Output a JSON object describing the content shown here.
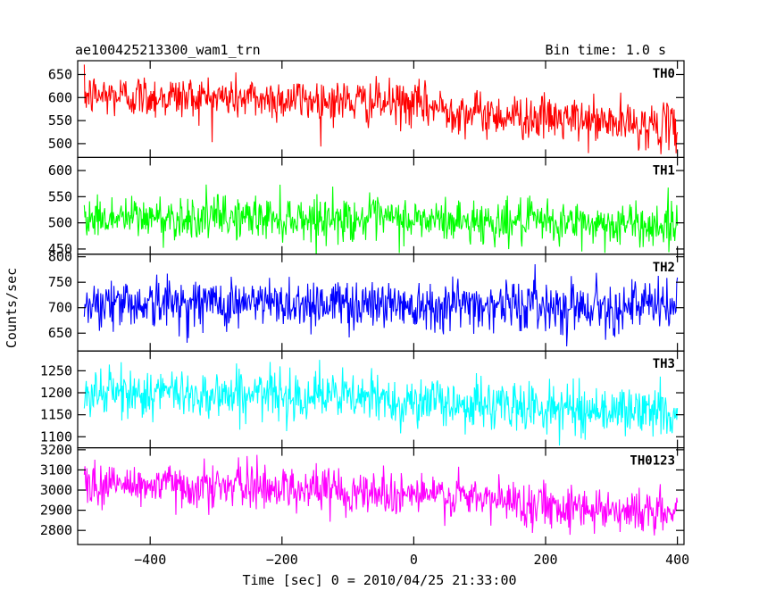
{
  "chart_data": {
    "type": "line",
    "title": "ae100425213300_wam1_trn",
    "subtitle": "Bin time: 1.0 s",
    "xlabel": "Time [sec] 0 = 2010/04/25 21:33:00",
    "ylabel": "Counts/sec",
    "xlim": [
      -510,
      410
    ],
    "x_ticks": [
      -400,
      -200,
      0,
      200,
      400
    ],
    "x_tick_labels": [
      "−400",
      "−200",
      "0",
      "200",
      "400"
    ],
    "x_range": [
      -500,
      400
    ],
    "bin_time_s": 1.0,
    "grid": false,
    "legend": "none",
    "panels": [
      {
        "name": "TH0",
        "color": "#ff0000",
        "ylim": [
          470,
          680
        ],
        "y_ticks": [
          500,
          550,
          600,
          650
        ],
        "trend": [
          [
            -500,
            605
          ],
          [
            -300,
            600
          ],
          [
            -150,
            595
          ],
          [
            0,
            585
          ],
          [
            100,
            565
          ],
          [
            250,
            550
          ],
          [
            400,
            535
          ]
        ],
        "noise_sd": 24
      },
      {
        "name": "TH1",
        "color": "#00ff00",
        "ylim": [
          440,
          625
        ],
        "y_ticks": [
          450,
          500,
          550,
          600
        ],
        "trend": [
          [
            -500,
            510
          ],
          [
            -200,
            510
          ],
          [
            0,
            505
          ],
          [
            200,
            500
          ],
          [
            400,
            495
          ]
        ],
        "noise_sd": 21
      },
      {
        "name": "TH2",
        "color": "#0000ff",
        "ylim": [
          615,
          805
        ],
        "y_ticks": [
          650,
          700,
          750,
          800
        ],
        "trend": [
          [
            -500,
            710
          ],
          [
            0,
            708
          ],
          [
            400,
            702
          ]
        ],
        "noise_sd": 25
      },
      {
        "name": "TH3",
        "color": "#00ffff",
        "ylim": [
          1075,
          1295
        ],
        "y_ticks": [
          1100,
          1150,
          1200,
          1250
        ],
        "trend": [
          [
            -500,
            1200
          ],
          [
            -150,
            1195
          ],
          [
            0,
            1180
          ],
          [
            200,
            1165
          ],
          [
            400,
            1155
          ]
        ],
        "noise_sd": 28
      },
      {
        "name": "TH0123",
        "color": "#ff00ff",
        "ylim": [
          2730,
          3210
        ],
        "y_ticks": [
          2800,
          2900,
          3000,
          3100,
          3200
        ],
        "trend": [
          [
            -500,
            3030
          ],
          [
            -200,
            3015
          ],
          [
            0,
            2980
          ],
          [
            200,
            2930
          ],
          [
            400,
            2880
          ]
        ],
        "noise_sd": 55
      }
    ]
  }
}
